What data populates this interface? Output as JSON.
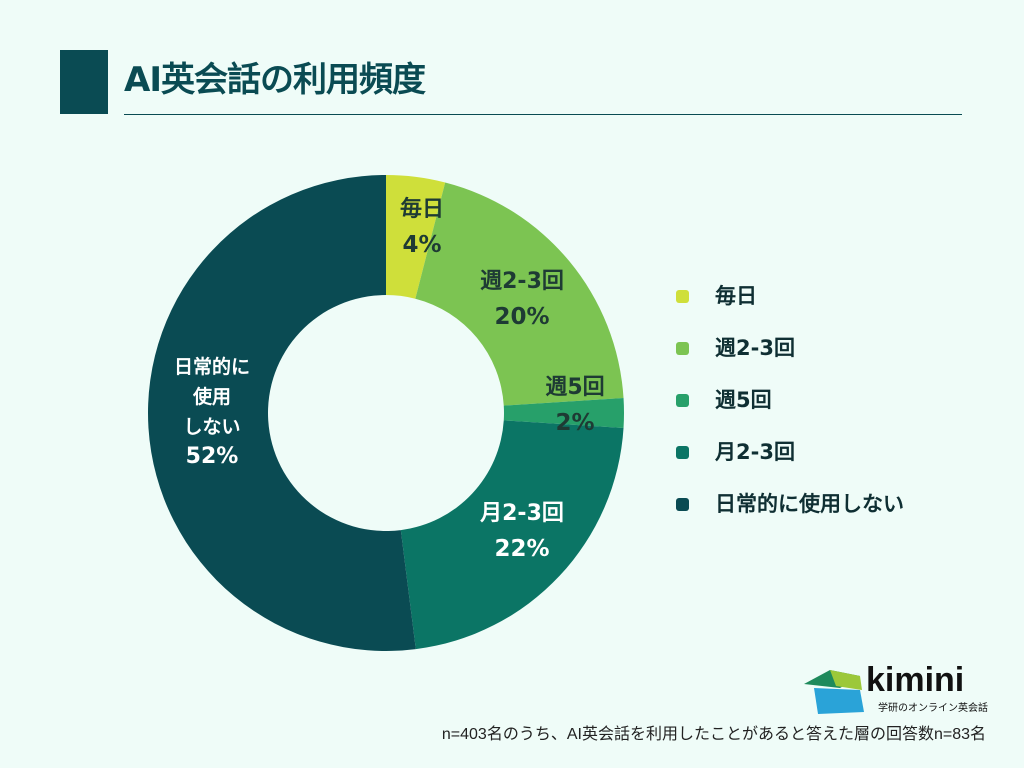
{
  "title": "AI英会話の利用頻度",
  "chart_data": {
    "type": "pie",
    "donut": true,
    "title": "AI英会話の利用頻度",
    "legend_position": "right",
    "slices": [
      {
        "label": "毎日",
        "value": 4,
        "value_label": "4%",
        "color": "#cfdf3a",
        "label_color": "#1e3b34"
      },
      {
        "label": "週2-3回",
        "value": 20,
        "value_label": "20%",
        "color": "#7cc452",
        "label_color": "#1e3b34"
      },
      {
        "label": "週5回",
        "value": 2,
        "value_label": "2%",
        "color": "#27a06a",
        "label_color": "#1e3b34"
      },
      {
        "label": "月2-3回",
        "value": 22,
        "value_label": "22%",
        "color": "#0b7565",
        "label_color": "#ffffff"
      },
      {
        "label": "日常的に使用しない",
        "value": 52,
        "value_label": "52%",
        "color": "#0a4b53",
        "label_color": "#ffffff",
        "label_lines": [
          "日常的に",
          "使用",
          "しない"
        ]
      }
    ]
  },
  "footnote": "n=403名のうち、AI英会話を利用したことがあると答えた層の回答数n=83名",
  "logo": {
    "word": "kimini",
    "sub": "学研のオンライン英会話"
  }
}
